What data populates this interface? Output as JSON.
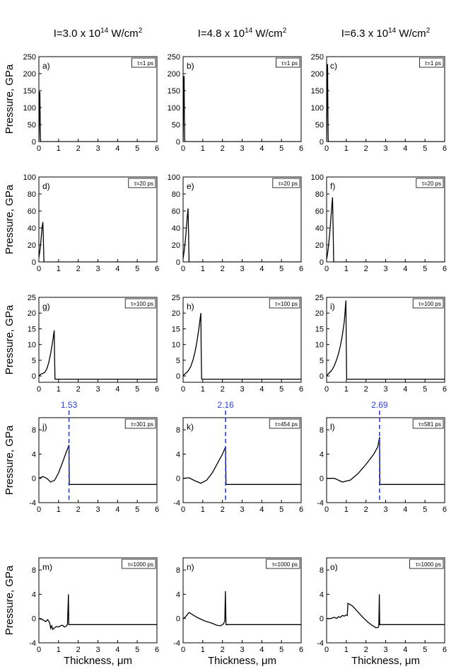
{
  "column_headers": [
    {
      "base": "I=3.0 x 10",
      "exp": "14",
      "unit": " W/cm",
      "unit_exp": "2"
    },
    {
      "base": "I=4.8 x 10",
      "exp": "14",
      "unit": " W/cm",
      "unit_exp": "2"
    },
    {
      "base": "I=6.3 x 10",
      "exp": "14",
      "unit": " W/cm",
      "unit_exp": "2"
    }
  ],
  "ylabel": "Pressure, GPa",
  "xlabel": "Thickness, μm",
  "colors": {
    "curve": "#000000",
    "marker_line": "#2a3ee0",
    "marker_text": "#2a3ee0"
  },
  "chart_data": [
    {
      "type": "line",
      "panel": "a)",
      "tau": "τ=1 ps",
      "xlim": [
        0,
        6
      ],
      "ylim": [
        0,
        250
      ],
      "xticks": [
        0,
        1,
        2,
        3,
        4,
        5,
        6
      ],
      "yticks": [
        0,
        50,
        100,
        150,
        200,
        250
      ],
      "series": [
        {
          "x": [
            0,
            0.02,
            0.04,
            0.05,
            0.06,
            0.08,
            0.1,
            6
          ],
          "y": [
            0,
            80,
            145,
            147,
            90,
            5,
            0,
            0
          ]
        }
      ]
    },
    {
      "type": "line",
      "panel": "b)",
      "tau": "τ=1 ps",
      "xlim": [
        0,
        6
      ],
      "ylim": [
        0,
        250
      ],
      "xticks": [
        0,
        1,
        2,
        3,
        4,
        5,
        6
      ],
      "yticks": [
        0,
        50,
        100,
        150,
        200,
        250
      ],
      "series": [
        {
          "x": [
            0,
            0.02,
            0.04,
            0.05,
            0.06,
            0.08,
            0.1,
            6
          ],
          "y": [
            0,
            110,
            190,
            193,
            110,
            5,
            0,
            0
          ]
        }
      ]
    },
    {
      "type": "line",
      "panel": "c)",
      "tau": "τ=1 ps",
      "xlim": [
        0,
        6
      ],
      "ylim": [
        0,
        250
      ],
      "xticks": [
        0,
        1,
        2,
        3,
        4,
        5,
        6
      ],
      "yticks": [
        0,
        50,
        100,
        150,
        200,
        250
      ],
      "series": [
        {
          "x": [
            0,
            0.02,
            0.04,
            0.05,
            0.06,
            0.08,
            0.1,
            6
          ],
          "y": [
            0,
            130,
            225,
            228,
            130,
            5,
            0,
            0
          ]
        }
      ]
    },
    {
      "type": "line",
      "panel": "d)",
      "tau": "τ=20 ps",
      "xlim": [
        0,
        6
      ],
      "ylim": [
        0,
        100
      ],
      "xticks": [
        0,
        1,
        2,
        3,
        4,
        5,
        6
      ],
      "yticks": [
        0,
        20,
        40,
        60,
        80,
        100
      ],
      "series": [
        {
          "x": [
            0,
            0.05,
            0.1,
            0.15,
            0.2,
            0.22,
            0.24,
            0.26,
            6
          ],
          "y": [
            5,
            13,
            24,
            38,
            47,
            35,
            15,
            0,
            0
          ]
        }
      ]
    },
    {
      "type": "line",
      "panel": "e)",
      "tau": "τ=20 ps",
      "xlim": [
        0,
        6
      ],
      "ylim": [
        0,
        100
      ],
      "xticks": [
        0,
        1,
        2,
        3,
        4,
        5,
        6
      ],
      "yticks": [
        0,
        20,
        40,
        60,
        80,
        100
      ],
      "series": [
        {
          "x": [
            0,
            0.05,
            0.1,
            0.15,
            0.2,
            0.25,
            0.28,
            0.3,
            6
          ],
          "y": [
            4,
            12,
            22,
            35,
            50,
            63,
            30,
            0,
            0
          ]
        }
      ]
    },
    {
      "type": "line",
      "panel": "f)",
      "tau": "τ=20 ps",
      "xlim": [
        0,
        6
      ],
      "ylim": [
        0,
        100
      ],
      "xticks": [
        0,
        1,
        2,
        3,
        4,
        5,
        6
      ],
      "yticks": [
        0,
        20,
        40,
        60,
        80,
        100
      ],
      "series": [
        {
          "x": [
            0,
            0.05,
            0.1,
            0.15,
            0.2,
            0.25,
            0.3,
            0.33,
            0.36,
            6
          ],
          "y": [
            3,
            10,
            20,
            32,
            46,
            62,
            76,
            40,
            0,
            0
          ]
        }
      ]
    },
    {
      "type": "line",
      "panel": "g)",
      "tau": "τ=100 ps",
      "xlim": [
        0,
        6
      ],
      "ylim": [
        -2,
        25
      ],
      "xticks": [
        0,
        1,
        2,
        3,
        4,
        5,
        6
      ],
      "yticks": [
        0,
        5,
        10,
        15,
        20,
        25
      ],
      "series": [
        {
          "x": [
            0,
            0.1,
            0.2,
            0.3,
            0.4,
            0.5,
            0.6,
            0.7,
            0.78,
            0.8,
            0.82,
            6
          ],
          "y": [
            0,
            0.6,
            0.8,
            1.2,
            2.2,
            4.2,
            7.2,
            11,
            14.5,
            5,
            -1,
            -1
          ]
        }
      ]
    },
    {
      "type": "line",
      "panel": "h)",
      "tau": "τ=100 ps",
      "xlim": [
        0,
        6
      ],
      "ylim": [
        -2,
        25
      ],
      "xticks": [
        0,
        1,
        2,
        3,
        4,
        5,
        6
      ],
      "yticks": [
        0,
        5,
        10,
        15,
        20,
        25
      ],
      "series": [
        {
          "x": [
            0,
            0.1,
            0.2,
            0.3,
            0.4,
            0.5,
            0.6,
            0.7,
            0.8,
            0.9,
            0.92,
            0.94,
            6
          ],
          "y": [
            0,
            0.7,
            1.2,
            2,
            3.2,
            5,
            7.5,
            10.8,
            15,
            20,
            8,
            -1,
            -1
          ]
        }
      ]
    },
    {
      "type": "line",
      "panel": "i)",
      "tau": "τ=100 ps",
      "xlim": [
        0,
        6
      ],
      "ylim": [
        -2,
        25
      ],
      "xticks": [
        0,
        1,
        2,
        3,
        4,
        5,
        6
      ],
      "yticks": [
        0,
        5,
        10,
        15,
        20,
        25
      ],
      "series": [
        {
          "x": [
            0,
            0.1,
            0.2,
            0.3,
            0.4,
            0.5,
            0.6,
            0.7,
            0.8,
            0.9,
            0.98,
            1.0,
            1.02,
            6
          ],
          "y": [
            0,
            0.8,
            1.4,
            2.2,
            3.4,
            5,
            7,
            9.6,
            13,
            17.5,
            24,
            10,
            -1,
            -1
          ]
        }
      ]
    },
    {
      "type": "line",
      "panel": "j)",
      "tau": "τ=301 ps",
      "xlim": [
        0,
        6
      ],
      "ylim": [
        -4,
        10
      ],
      "xticks": [
        0,
        1,
        2,
        3,
        4,
        5,
        6
      ],
      "yticks": [
        -4,
        0,
        4,
        8
      ],
      "marker": {
        "x": 1.53,
        "label": "1.53"
      },
      "series": [
        {
          "x": [
            0,
            0.2,
            0.4,
            0.6,
            0.8,
            1.0,
            1.2,
            1.4,
            1.53,
            1.55,
            6
          ],
          "y": [
            0,
            0.3,
            0,
            -0.6,
            -0.3,
            0.9,
            2.6,
            4.4,
            5.5,
            -1,
            -1
          ]
        }
      ]
    },
    {
      "type": "line",
      "panel": "k)",
      "tau": "τ=454 ps",
      "xlim": [
        0,
        6
      ],
      "ylim": [
        -4,
        10
      ],
      "xticks": [
        0,
        1,
        2,
        3,
        4,
        5,
        6
      ],
      "yticks": [
        -4,
        0,
        4,
        8
      ],
      "marker": {
        "x": 2.16,
        "label": "2.16"
      },
      "series": [
        {
          "x": [
            0,
            0.3,
            0.6,
            0.9,
            1.2,
            1.5,
            1.8,
            2.0,
            2.16,
            2.18,
            6
          ],
          "y": [
            0,
            0.1,
            -0.4,
            -0.8,
            -0.3,
            1,
            2.8,
            4,
            5.2,
            -1,
            -1
          ]
        }
      ]
    },
    {
      "type": "line",
      "panel": "l)",
      "tau": "τ=581 ps",
      "xlim": [
        0,
        6
      ],
      "ylim": [
        -4,
        10
      ],
      "xticks": [
        0,
        1,
        2,
        3,
        4,
        5,
        6
      ],
      "yticks": [
        -4,
        0,
        4,
        8
      ],
      "marker": {
        "x": 2.69,
        "label": "2.69"
      },
      "series": [
        {
          "x": [
            0,
            0.4,
            0.8,
            1.2,
            1.6,
            2.0,
            2.4,
            2.6,
            2.69,
            2.71,
            6
          ],
          "y": [
            0,
            0,
            -0.6,
            -0.3,
            0.8,
            2.3,
            4,
            5.2,
            6.8,
            -1,
            -1
          ]
        }
      ]
    },
    {
      "type": "line",
      "panel": "m)",
      "tau": "τ=1000 ps",
      "xlim": [
        0,
        6
      ],
      "ylim": [
        -4,
        10
      ],
      "xticks": [
        0,
        1,
        2,
        3,
        4,
        5,
        6
      ],
      "yticks": [
        -4,
        0,
        4,
        8
      ],
      "series": [
        {
          "x": [
            0,
            0.2,
            0.35,
            0.45,
            0.55,
            0.6,
            0.65,
            0.7,
            0.8,
            0.9,
            1.0,
            1.1,
            1.2,
            1.3,
            1.4,
            1.45,
            1.5,
            1.52,
            1.55,
            6
          ],
          "y": [
            0,
            -0.2,
            -0.5,
            -0.2,
            -0.7,
            -1.6,
            -1.2,
            -1.8,
            -1.5,
            -1.3,
            -1.4,
            -1.2,
            -1.1,
            -1.4,
            -1.2,
            -1,
            4,
            -1,
            -1,
            -1
          ]
        }
      ]
    },
    {
      "type": "line",
      "panel": "n)",
      "tau": "τ=1000 ps",
      "xlim": [
        0,
        6
      ],
      "ylim": [
        -4,
        10
      ],
      "xticks": [
        0,
        1,
        2,
        3,
        4,
        5,
        6
      ],
      "yticks": [
        -4,
        0,
        4,
        8
      ],
      "series": [
        {
          "x": [
            0,
            0.1,
            0.2,
            0.3,
            0.5,
            0.7,
            0.9,
            1.1,
            1.3,
            1.5,
            1.7,
            1.9,
            2.05,
            2.12,
            2.15,
            2.18,
            6
          ],
          "y": [
            0,
            0.2,
            0.6,
            1,
            0.6,
            0.2,
            -0.1,
            -0.4,
            -0.6,
            -0.8,
            -1.1,
            -1.2,
            -0.9,
            -0.4,
            4.5,
            -1,
            -1
          ]
        }
      ]
    },
    {
      "type": "line",
      "panel": "o)",
      "tau": "τ=1000 ps",
      "xlim": [
        0,
        6
      ],
      "ylim": [
        -4,
        10
      ],
      "xticks": [
        0,
        1,
        2,
        3,
        4,
        5,
        6
      ],
      "yticks": [
        -4,
        0,
        4,
        8
      ],
      "series": [
        {
          "x": [
            0,
            0.2,
            0.4,
            0.5,
            0.6,
            0.7,
            0.8,
            0.9,
            1.0,
            1.05,
            1.08,
            1.3,
            1.5,
            1.7,
            1.9,
            2.1,
            2.3,
            2.5,
            2.6,
            2.65,
            2.68,
            2.7,
            6
          ],
          "y": [
            0,
            0,
            0.2,
            0,
            0.3,
            0.2,
            0.5,
            0.4,
            0.6,
            0.5,
            2.5,
            2.1,
            1.4,
            0.7,
            0,
            -0.6,
            -1.1,
            -1.5,
            -1.5,
            -1.3,
            4,
            -1,
            -1
          ]
        }
      ]
    }
  ]
}
